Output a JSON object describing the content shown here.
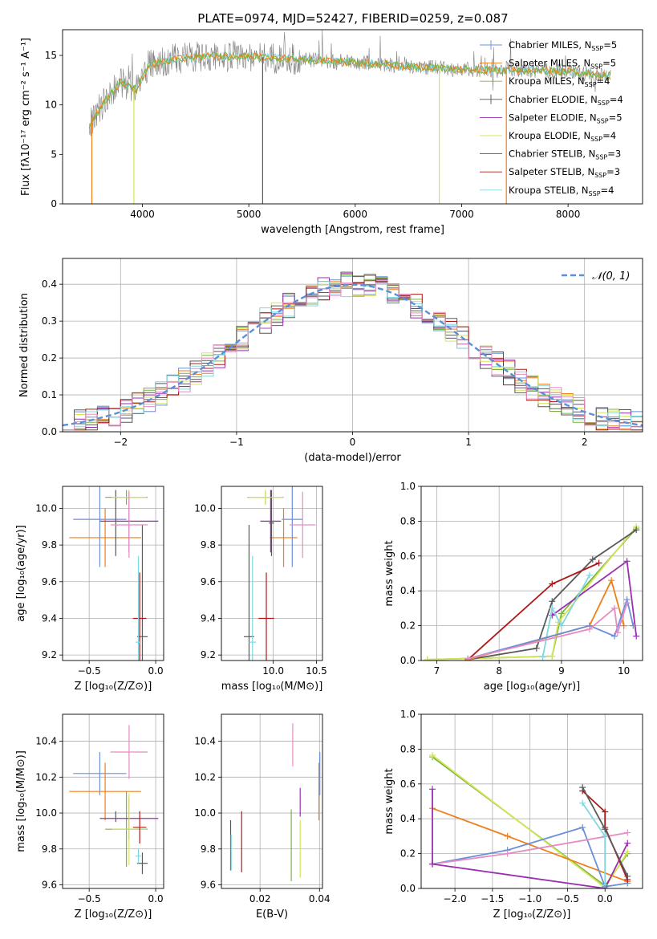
{
  "figure_title": "PLATE=0974, MJD=52427, FIBERID=0259, z=0.087",
  "colors": {
    "cm": "#6a8fd8",
    "sm": "#ef7f1a",
    "km": "#7ab33f",
    "ce": "#555555",
    "se": "#9a2fb0",
    "ke": "#d4e55a",
    "cs": "#5a5a5a",
    "ss": "#b01818",
    "ks": "#7fd8e0",
    "extra_pink": "#e58cc2",
    "normal_fit": "#5b8fd6"
  },
  "chart_data": [
    {
      "type": "line",
      "id": "spectrum",
      "xlabel": "wavelength [Angstrom, rest frame]",
      "ylabel": "Flux [fλ10⁻¹⁷ erg cm⁻² s⁻¹ A⁻¹]",
      "xlim": [
        3250,
        8700
      ],
      "ylim": [
        0,
        17.6
      ],
      "xticks": [
        4000,
        5000,
        6000,
        7000,
        8000
      ],
      "yticks": [
        0,
        5,
        10,
        15
      ],
      "legend_position": "upper right",
      "legend": [
        {
          "label": "Chabrier MILES, N",
          "sub": "SSP",
          "suffix": "=5",
          "color_key": "cm",
          "marker": "|"
        },
        {
          "label": "Salpeter MILES, N",
          "sub": "SSP",
          "suffix": "=5",
          "color_key": "sm",
          "marker": ""
        },
        {
          "label": "Kroupa MILES, N",
          "sub": "SSP",
          "suffix": "=4",
          "color_key": "km",
          "marker": ""
        },
        {
          "label": "Chabrier ELODIE, N",
          "sub": "SSP",
          "suffix": "=4",
          "color_key": "ce",
          "marker": "|"
        },
        {
          "label": "Salpeter ELODIE, N",
          "sub": "SSP",
          "suffix": "=5",
          "color_key": "se",
          "marker": ""
        },
        {
          "label": "Kroupa ELODIE, N",
          "sub": "SSP",
          "suffix": "=4",
          "color_key": "ke",
          "marker": ""
        },
        {
          "label": "Chabrier STELIB, N",
          "sub": "SSP",
          "suffix": "=3",
          "color_key": "cs",
          "marker": ""
        },
        {
          "label": "Salpeter STELIB, N",
          "sub": "SSP",
          "suffix": "=3",
          "color_key": "ss",
          "marker": ""
        },
        {
          "label": "Kroupa STELIB, N",
          "sub": "SSP",
          "suffix": "=4",
          "color_key": "ks",
          "marker": ""
        }
      ],
      "continuum": [
        [
          3500,
          7.8
        ],
        [
          3650,
          10.5
        ],
        [
          3800,
          12.3
        ],
        [
          3950,
          11.5
        ],
        [
          4050,
          14.0
        ],
        [
          4300,
          14.6
        ],
        [
          4600,
          14.9
        ],
        [
          5000,
          14.9
        ],
        [
          5500,
          14.6
        ],
        [
          6000,
          14.3
        ],
        [
          6500,
          13.9
        ],
        [
          7000,
          13.6
        ],
        [
          7500,
          13.5
        ],
        [
          8000,
          13.4
        ],
        [
          8400,
          12.9
        ]
      ],
      "spikes": [
        {
          "x": 3525,
          "y": 0,
          "color_key": "sm"
        },
        {
          "x": 3920,
          "y": 0,
          "color_key": "ke"
        },
        {
          "x": 5130,
          "y": 0,
          "color_key": "cs"
        },
        {
          "x": 6790,
          "y": 0,
          "color_key": "ke"
        },
        {
          "x": 7420,
          "y": 0,
          "color_key": "sm"
        }
      ]
    },
    {
      "type": "step_histogram",
      "id": "residuals",
      "xlabel": "(data-model)/error",
      "ylabel": "Normed distribution",
      "xlim": [
        -2.5,
        2.5
      ],
      "ylim": [
        0,
        0.47
      ],
      "xticks": [
        -2,
        -1,
        0,
        1,
        2
      ],
      "yticks": [
        0.0,
        0.1,
        0.2,
        0.3,
        0.4
      ],
      "legend_position": "upper right",
      "legend_label": "𝒩(0, 1)",
      "bin_width": 0.1
    },
    {
      "type": "errorbar",
      "id": "age_vs_Z",
      "xlabel": "Z [log₁₀(Z/Z⊙)]",
      "ylabel": "age  [log₁₀(age/yr)]",
      "xlim": [
        -0.7,
        0.06
      ],
      "ylim": [
        9.17,
        10.12
      ],
      "xticks": [
        -0.5,
        0.0
      ],
      "yticks": [
        9.2,
        9.4,
        9.6,
        9.8,
        10.0
      ],
      "points": [
        {
          "color_key": "cm",
          "x": -0.42,
          "xerr": 0.2,
          "y": 9.94,
          "yerr": 0.26
        },
        {
          "color_key": "sm",
          "x": -0.38,
          "xerr": 0.27,
          "y": 9.84,
          "yerr": 0.16
        },
        {
          "color_key": "km",
          "x": -0.22,
          "xerr": 0.16,
          "y": 10.06,
          "yerr": 0.04
        },
        {
          "color_key": "ce",
          "x": -0.3,
          "xerr": 0.0,
          "y": 9.92,
          "yerr": 0.18
        },
        {
          "color_key": "se",
          "x": -0.2,
          "xerr": 0.22,
          "y": 9.93,
          "yerr": 0.17
        },
        {
          "color_key": "ke",
          "x": -0.2,
          "xerr": 0.13,
          "y": 10.06,
          "yerr": 0.04
        },
        {
          "color_key": "cs",
          "x": -0.1,
          "xerr": 0.04,
          "y": 9.3,
          "yerr": 0.61
        },
        {
          "color_key": "ss",
          "x": -0.12,
          "xerr": 0.05,
          "y": 9.4,
          "yerr": 0.25
        },
        {
          "color_key": "ks",
          "x": -0.13,
          "xerr": 0.02,
          "y": 9.27,
          "yerr": 0.47
        },
        {
          "color_key": "extra_pink",
          "x": -0.2,
          "xerr": 0.14,
          "y": 9.91,
          "yerr": 0.18
        }
      ]
    },
    {
      "type": "errorbar",
      "id": "age_vs_mass",
      "xlabel": "mass [log₁₀(M/M⊙)]",
      "ylabel": "",
      "xlim": [
        9.4,
        10.57
      ],
      "ylim": [
        9.17,
        10.12
      ],
      "xticks": [
        10.0,
        10.5
      ],
      "yticks": [
        9.2,
        9.4,
        9.6,
        9.8,
        10.0
      ],
      "points": [
        {
          "color_key": "cm",
          "x": 10.22,
          "xerr": 0.12,
          "y": 9.94,
          "yerr": 0.26
        },
        {
          "color_key": "sm",
          "x": 10.12,
          "xerr": 0.16,
          "y": 9.84,
          "yerr": 0.16
        },
        {
          "color_key": "km",
          "x": 9.91,
          "xerr": 0.21,
          "y": 10.06,
          "yerr": 0.04
        },
        {
          "color_key": "ce",
          "x": 9.98,
          "xerr": 0.03,
          "y": 9.92,
          "yerr": 0.18
        },
        {
          "color_key": "se",
          "x": 9.97,
          "xerr": 0.12,
          "y": 9.93,
          "yerr": 0.17
        },
        {
          "color_key": "ke",
          "x": 9.91,
          "xerr": 0.2,
          "y": 10.06,
          "yerr": 0.04
        },
        {
          "color_key": "cs",
          "x": 9.72,
          "xerr": 0.06,
          "y": 9.3,
          "yerr": 0.61
        },
        {
          "color_key": "ss",
          "x": 9.92,
          "xerr": 0.09,
          "y": 9.4,
          "yerr": 0.25
        },
        {
          "color_key": "ks",
          "x": 9.76,
          "xerr": 0.04,
          "y": 9.27,
          "yerr": 0.47
        },
        {
          "color_key": "extra_pink",
          "x": 10.34,
          "xerr": 0.15,
          "y": 9.91,
          "yerr": 0.18
        }
      ]
    },
    {
      "type": "line",
      "id": "weight_vs_age",
      "xlabel": "age  [log₁₀(age/yr)]",
      "ylabel": "mass weight",
      "xlim": [
        6.75,
        10.3
      ],
      "ylim": [
        0,
        1
      ],
      "xticks": [
        7,
        8,
        9,
        10
      ],
      "yticks": [
        0.0,
        0.2,
        0.4,
        0.6,
        0.8,
        1.0
      ],
      "series": [
        {
          "color_key": "km",
          "points": [
            [
              6.85,
              0.005
            ],
            [
              8.85,
              0.025
            ],
            [
              9.0,
              0.27
            ],
            [
              10.2,
              0.76
            ]
          ]
        },
        {
          "color_key": "ke",
          "points": [
            [
              6.85,
              0.005
            ],
            [
              8.85,
              0.025
            ],
            [
              8.95,
              0.22
            ],
            [
              10.2,
              0.77
            ]
          ]
        },
        {
          "color_key": "cs",
          "points": [
            [
              7.5,
              0.005
            ],
            [
              8.6,
              0.07
            ],
            [
              8.85,
              0.34
            ],
            [
              9.5,
              0.58
            ],
            [
              10.2,
              0.75
            ]
          ]
        },
        {
          "color_key": "ss",
          "points": [
            [
              7.5,
              0.005
            ],
            [
              8.85,
              0.44
            ],
            [
              9.6,
              0.56
            ]
          ]
        },
        {
          "color_key": "se",
          "points": [
            [
              8.85,
              0.26
            ],
            [
              10.05,
              0.57
            ],
            [
              10.2,
              0.14
            ]
          ]
        },
        {
          "color_key": "ks",
          "points": [
            [
              8.7,
              0.02
            ],
            [
              8.85,
              0.3
            ],
            [
              9.0,
              0.2
            ],
            [
              9.45,
              0.49
            ]
          ]
        },
        {
          "color_key": "sm",
          "points": [
            [
              7.5,
              0.005
            ],
            [
              9.45,
              0.2
            ],
            [
              9.8,
              0.46
            ],
            [
              10.0,
              0.2
            ]
          ]
        },
        {
          "color_key": "cm",
          "points": [
            [
              7.5,
              0.01
            ],
            [
              9.45,
              0.2
            ],
            [
              9.85,
              0.14
            ],
            [
              10.05,
              0.35
            ],
            [
              10.15,
              0.2
            ]
          ]
        },
        {
          "color_key": "extra_pink",
          "points": [
            [
              7.5,
              0.01
            ],
            [
              9.45,
              0.18
            ],
            [
              9.85,
              0.3
            ],
            [
              9.9,
              0.16
            ],
            [
              10.05,
              0.33
            ]
          ]
        }
      ]
    },
    {
      "type": "errorbar",
      "id": "mass_vs_Z",
      "xlabel": "Z [log₁₀(Z/Z⊙)]",
      "ylabel": "mass [log₁₀(M/M⊙)]",
      "xlim": [
        -0.7,
        0.06
      ],
      "ylim": [
        9.58,
        10.55
      ],
      "xticks": [
        -0.5,
        0.0
      ],
      "yticks": [
        9.6,
        9.8,
        10.0,
        10.2,
        10.4
      ],
      "points": [
        {
          "color_key": "cm",
          "x": -0.42,
          "xerr": 0.2,
          "y": 10.22,
          "yerr": 0.12
        },
        {
          "color_key": "sm",
          "x": -0.38,
          "xerr": 0.27,
          "y": 10.12,
          "yerr": 0.16
        },
        {
          "color_key": "km",
          "x": -0.22,
          "xerr": 0.16,
          "y": 9.91,
          "yerr": 0.21
        },
        {
          "color_key": "ce",
          "x": -0.3,
          "xerr": 0.0,
          "y": 9.98,
          "yerr": 0.03
        },
        {
          "color_key": "se",
          "x": -0.2,
          "xerr": 0.22,
          "y": 9.97,
          "yerr": 0.12
        },
        {
          "color_key": "ke",
          "x": -0.2,
          "xerr": 0.13,
          "y": 9.91,
          "yerr": 0.2
        },
        {
          "color_key": "cs",
          "x": -0.1,
          "xerr": 0.04,
          "y": 9.72,
          "yerr": 0.06
        },
        {
          "color_key": "ss",
          "x": -0.12,
          "xerr": 0.05,
          "y": 9.92,
          "yerr": 0.09
        },
        {
          "color_key": "ks",
          "x": -0.13,
          "xerr": 0.02,
          "y": 9.76,
          "yerr": 0.04
        },
        {
          "color_key": "extra_pink",
          "x": -0.2,
          "xerr": 0.14,
          "y": 10.34,
          "yerr": 0.15
        }
      ]
    },
    {
      "type": "errorbar",
      "id": "mass_vs_ebv",
      "xlabel": "E(B-V)",
      "ylabel": "",
      "xlim": [
        0.007,
        0.041
      ],
      "ylim": [
        9.58,
        10.55
      ],
      "xticks": [
        0.02,
        0.04
      ],
      "yticks": [
        9.6,
        9.8,
        10.0,
        10.2,
        10.4
      ],
      "points": [
        {
          "color_key": "cm",
          "x": 0.0401,
          "xerr": 0.0,
          "y": 10.22,
          "yerr": 0.12
        },
        {
          "color_key": "sm",
          "x": 0.0398,
          "xerr": 0.0,
          "y": 10.12,
          "yerr": 0.16
        },
        {
          "color_key": "km",
          "x": 0.0305,
          "xerr": 0.0,
          "y": 9.82,
          "yerr": 0.2
        },
        {
          "color_key": "ce",
          "x": 0.0101,
          "xerr": 0.0,
          "y": 9.82,
          "yerr": 0.14
        },
        {
          "color_key": "se",
          "x": 0.0335,
          "xerr": 0.0,
          "y": 10.06,
          "yerr": 0.08
        },
        {
          "color_key": "ke",
          "x": 0.0335,
          "xerr": 0.0,
          "y": 9.8,
          "yerr": 0.16
        },
        {
          "color_key": "ss",
          "x": 0.0138,
          "xerr": 0.0,
          "y": 9.84,
          "yerr": 0.17
        },
        {
          "color_key": "ks",
          "x": 0.0103,
          "xerr": 0.0,
          "y": 9.78,
          "yerr": 0.1
        },
        {
          "color_key": "extra_pink",
          "x": 0.031,
          "xerr": 0.0,
          "y": 10.38,
          "yerr": 0.12
        }
      ]
    },
    {
      "type": "line",
      "id": "weight_vs_Z",
      "xlabel": "Z [log₁₀(Z/Z⊙)]",
      "ylabel": "mass weight",
      "xlim": [
        -2.45,
        0.5
      ],
      "ylim": [
        0,
        1
      ],
      "xticks": [
        -2.0,
        -1.5,
        -1.0,
        -0.5,
        0.0
      ],
      "yticks": [
        0.0,
        0.2,
        0.4,
        0.6,
        0.8,
        1.0
      ],
      "series": [
        {
          "color_key": "km",
          "points": [
            [
              -2.3,
              0.755
            ],
            [
              0.0,
              0.015
            ],
            [
              0.3,
              0.2
            ]
          ]
        },
        {
          "color_key": "ke",
          "points": [
            [
              -2.3,
              0.765
            ],
            [
              0.0,
              0.005
            ],
            [
              0.3,
              0.21
            ]
          ]
        },
        {
          "color_key": "sm",
          "points": [
            [
              -2.3,
              0.46
            ],
            [
              -1.3,
              0.3
            ],
            [
              0.3,
              0.04
            ]
          ]
        },
        {
          "color_key": "cm",
          "points": [
            [
              -2.3,
              0.14
            ],
            [
              -1.3,
              0.22
            ],
            [
              -0.3,
              0.35
            ],
            [
              0.0,
              0.01
            ],
            [
              0.3,
              0.03
            ]
          ]
        },
        {
          "color_key": "extra_pink",
          "points": [
            [
              -2.3,
              0.14
            ],
            [
              -1.3,
              0.2
            ],
            [
              0.3,
              0.32
            ]
          ]
        },
        {
          "color_key": "se",
          "points": [
            [
              -2.3,
              0.57
            ],
            [
              -2.3,
              0.14
            ],
            [
              0.0,
              0.0
            ],
            [
              0.3,
              0.26
            ]
          ]
        },
        {
          "color_key": "ss",
          "points": [
            [
              -0.3,
              0.56
            ],
            [
              0.0,
              0.44
            ],
            [
              0.0,
              0.35
            ],
            [
              0.3,
              0.05
            ]
          ]
        },
        {
          "color_key": "cs",
          "points": [
            [
              -0.3,
              0.58
            ],
            [
              0.0,
              0.34
            ],
            [
              0.3,
              0.07
            ]
          ]
        },
        {
          "color_key": "ks",
          "points": [
            [
              -0.3,
              0.49
            ],
            [
              0.0,
              0.3
            ],
            [
              0.0,
              0.02
            ]
          ]
        }
      ]
    }
  ]
}
